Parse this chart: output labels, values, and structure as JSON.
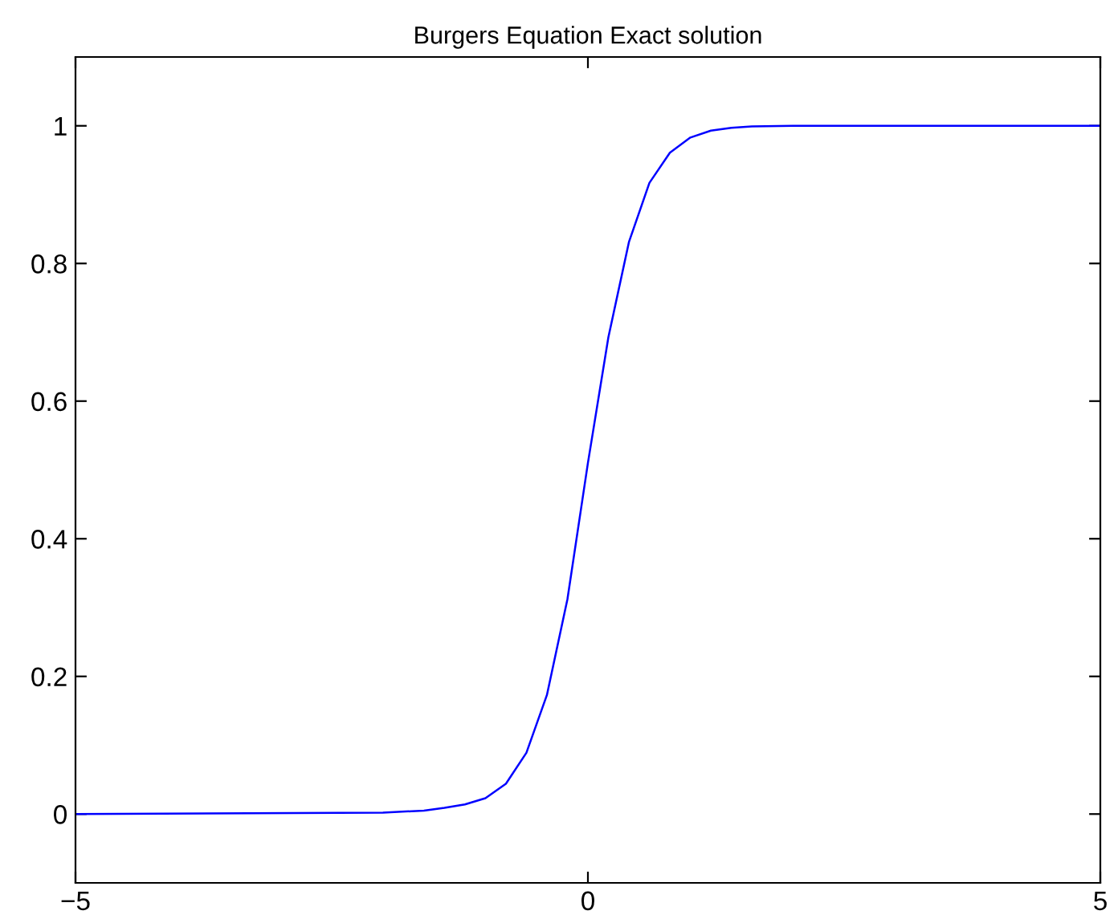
{
  "chart_data": {
    "type": "line",
    "title": "Burgers Equation Exact solution",
    "x": [
      -5,
      -2,
      -1.6,
      -1.4,
      -1.2,
      -1.0,
      -0.8,
      -0.6,
      -0.4,
      -0.2,
      0.0,
      0.2,
      0.4,
      0.6,
      0.8,
      1.0,
      1.2,
      1.4,
      1.6,
      2,
      5
    ],
    "series": [
      {
        "color": "#0000ff",
        "values": [
          0,
          0.002,
          0.005,
          0.009,
          0.014,
          0.023,
          0.044,
          0.089,
          0.173,
          0.312,
          0.51,
          0.693,
          0.831,
          0.917,
          0.961,
          0.983,
          0.993,
          0.997,
          0.999,
          1,
          1
        ]
      }
    ],
    "xlim": [
      -5,
      5
    ],
    "xticks": [
      {
        "value": -5,
        "label": "−5"
      },
      0,
      5
    ],
    "ylim": [
      -0.1,
      1.1
    ],
    "yticks": [
      0,
      0.2,
      0.4,
      0.6,
      0.8,
      1
    ],
    "grid": false,
    "marker": "none",
    "line_style": "solid"
  }
}
